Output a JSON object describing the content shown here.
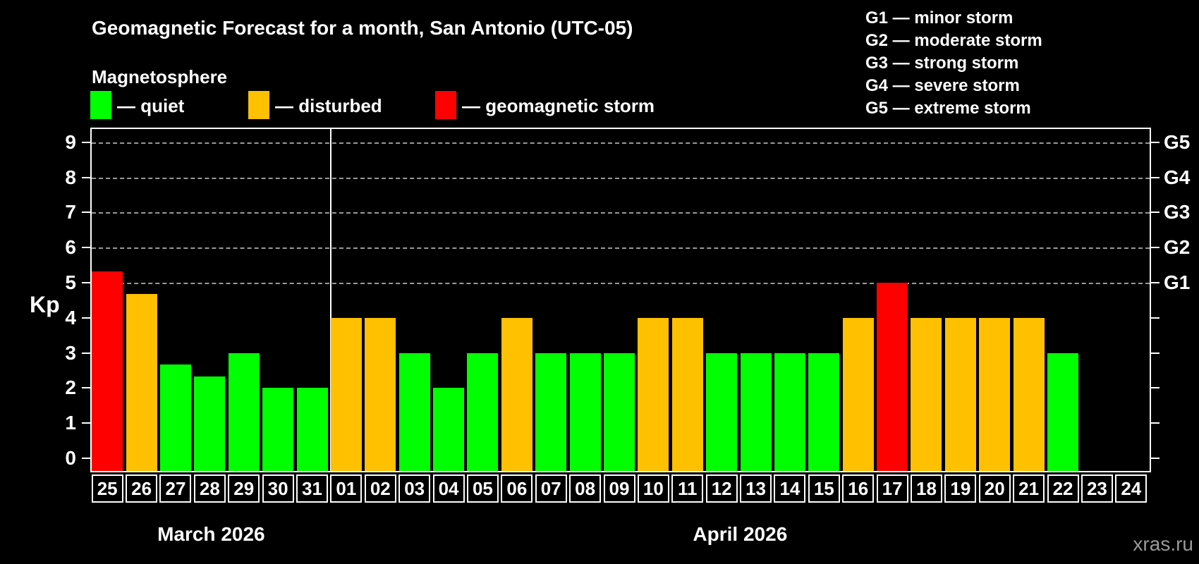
{
  "title": "Geomagnetic Forecast for a month, San Antonio (UTC-05)",
  "subtitle": "Magnetosphere",
  "legend": {
    "items": [
      {
        "status": "quiet",
        "label": "— quiet",
        "color": "#00ff00",
        "x": 0
      },
      {
        "status": "disturbed",
        "label": "— disturbed",
        "color": "#ffc000",
        "x": 224
      },
      {
        "status": "storm",
        "label": "— geomagnetic storm",
        "color": "#ff0000",
        "x": 489
      }
    ]
  },
  "g_scale_legend": [
    "G1 — minor storm",
    "G2 — moderate storm",
    "G3 — strong storm",
    "G4 — severe storm",
    "G5 — extreme storm"
  ],
  "axis": {
    "kp_label": "Kp",
    "left_tick_values": [
      0,
      1,
      2,
      3,
      4,
      5,
      6,
      7,
      8,
      9
    ],
    "right_storm_labels": [
      {
        "kp": 5,
        "label": "G1"
      },
      {
        "kp": 6,
        "label": "G2"
      },
      {
        "kp": 7,
        "label": "G3"
      },
      {
        "kp": 8,
        "label": "G4"
      },
      {
        "kp": 9,
        "label": "G5"
      }
    ]
  },
  "months": [
    {
      "label": "March 2026",
      "days": 7
    },
    {
      "label": "April 2026",
      "days": 24
    }
  ],
  "watermark": "xras.ru",
  "chart_data": {
    "type": "bar",
    "title": "Geomagnetic Forecast for a month, San Antonio (UTC-05)",
    "ylabel": "Kp",
    "ylim": [
      0,
      9.4
    ],
    "grid": "dashed horizontal lines at Kp 5-9 only",
    "legend_position": "top-left",
    "categories": [
      "25",
      "26",
      "27",
      "28",
      "29",
      "30",
      "31",
      "01",
      "02",
      "03",
      "04",
      "05",
      "06",
      "07",
      "08",
      "09",
      "10",
      "11",
      "12",
      "13",
      "14",
      "15",
      "16",
      "17",
      "18",
      "19",
      "20",
      "21",
      "22",
      "23",
      "24"
    ],
    "values": [
      5.33,
      4.67,
      2.67,
      2.33,
      3,
      2,
      2,
      4,
      4,
      3,
      2,
      3,
      4,
      3,
      3,
      3,
      4,
      4,
      3,
      3,
      3,
      3,
      4,
      5,
      4,
      4,
      4,
      4,
      3,
      null,
      null
    ],
    "statuses": [
      "storm",
      "disturbed",
      "quiet",
      "quiet",
      "quiet",
      "quiet",
      "quiet",
      "disturbed",
      "disturbed",
      "quiet",
      "quiet",
      "quiet",
      "disturbed",
      "quiet",
      "quiet",
      "quiet",
      "disturbed",
      "disturbed",
      "quiet",
      "quiet",
      "quiet",
      "quiet",
      "disturbed",
      "storm",
      "disturbed",
      "disturbed",
      "disturbed",
      "disturbed",
      "quiet",
      null,
      null
    ],
    "colors": {
      "quiet": "#00ff00",
      "disturbed": "#ffc000",
      "storm": "#ff0000"
    }
  }
}
